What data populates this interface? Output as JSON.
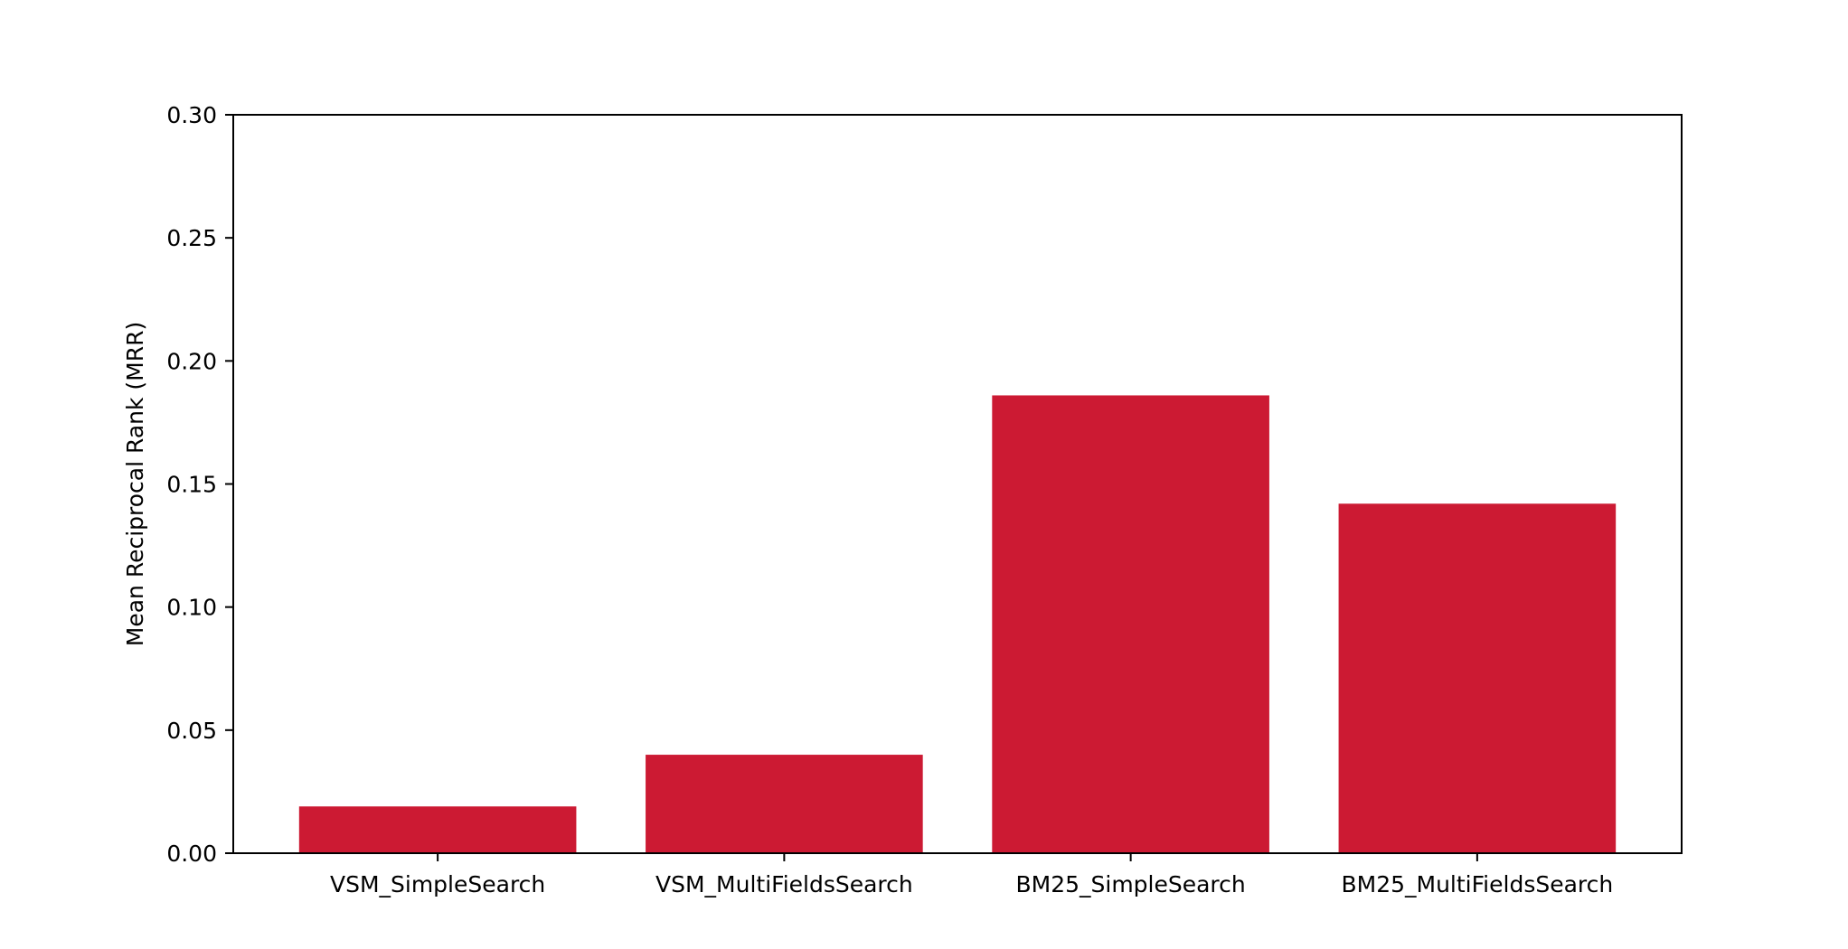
{
  "chart_data": {
    "type": "bar",
    "title": "",
    "xlabel": "",
    "ylabel": "Mean Reciprocal Rank (MRR)",
    "categories": [
      "VSM_SimpleSearch",
      "VSM_MultiFieldsSearch",
      "BM25_SimpleSearch",
      "BM25_MultiFieldsSearch"
    ],
    "values": [
      0.019,
      0.04,
      0.186,
      0.142
    ],
    "ylim": [
      0,
      0.3
    ],
    "yticks": [
      "0.00",
      "0.05",
      "0.10",
      "0.15",
      "0.20",
      "0.25",
      "0.30"
    ],
    "grid": false,
    "legend": "none",
    "bar_color": "#cc1a33"
  }
}
